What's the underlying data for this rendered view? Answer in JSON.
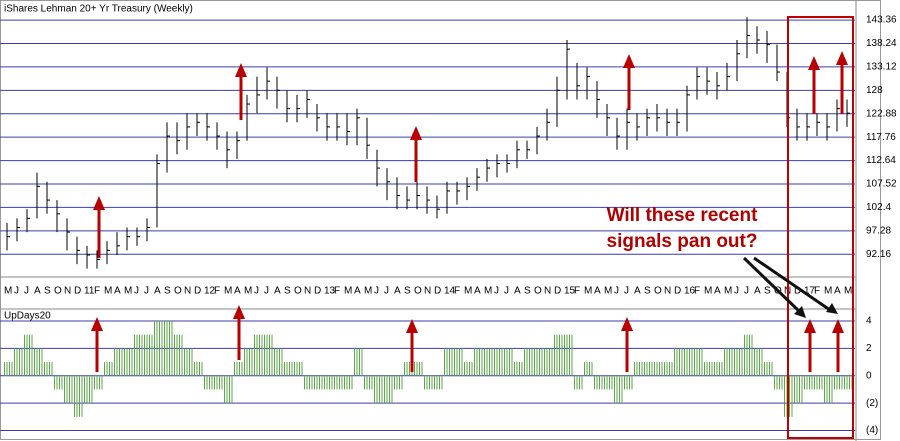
{
  "chart_data": [
    {
      "type": "ohlc",
      "title": "iShares Lehman 20+ Yr Treasury (Weekly)",
      "categories": [
        "M",
        "J",
        "J",
        "A",
        "S",
        "O",
        "N",
        "D",
        "11",
        "F",
        "M",
        "A",
        "M",
        "J",
        "J",
        "A",
        "S",
        "O",
        "N",
        "D",
        "12",
        "F",
        "M",
        "A",
        "M",
        "J",
        "J",
        "A",
        "S",
        "O",
        "N",
        "D",
        "13",
        "F",
        "M",
        "A",
        "M",
        "J",
        "J",
        "A",
        "S",
        "O",
        "N",
        "D",
        "14",
        "F",
        "M",
        "A",
        "M",
        "J",
        "J",
        "A",
        "S",
        "O",
        "N",
        "D",
        "15",
        "F",
        "M",
        "A",
        "M",
        "J",
        "J",
        "A",
        "S",
        "O",
        "N",
        "D",
        "16",
        "F",
        "M",
        "A",
        "M",
        "J",
        "J",
        "A",
        "S",
        "O",
        "N",
        "D",
        "17",
        "F",
        "M",
        "A",
        "M"
      ],
      "high": [
        99,
        100,
        102,
        110,
        108,
        104,
        100,
        96,
        94,
        93,
        95,
        97,
        98,
        98,
        100,
        114,
        121,
        121,
        123,
        123,
        123,
        121,
        119,
        119,
        127,
        131,
        133,
        131,
        128,
        127,
        128,
        125,
        123,
        123,
        123,
        124,
        122,
        115,
        111,
        109,
        107,
        108,
        107,
        105,
        108,
        108,
        109,
        111,
        113,
        114,
        114,
        117,
        117,
        120,
        124,
        131,
        139,
        134,
        133,
        130,
        125,
        122,
        124,
        123,
        124,
        125,
        124,
        124,
        129,
        133,
        133,
        132,
        134,
        139,
        144,
        142,
        141,
        138,
        132,
        124,
        123,
        123,
        123,
        126,
        126
      ],
      "low": [
        93,
        95,
        97,
        100,
        101,
        97,
        93,
        90,
        89,
        89,
        90,
        92,
        93,
        94,
        95,
        98,
        110,
        114,
        115,
        118,
        117,
        115,
        111,
        113,
        117,
        123,
        126,
        124,
        121,
        121,
        122,
        119,
        117,
        117,
        116,
        116,
        113,
        107,
        104,
        102,
        102,
        102,
        101,
        100,
        101,
        103,
        104,
        106,
        108,
        109,
        110,
        111,
        113,
        114,
        117,
        120,
        126,
        126,
        126,
        122,
        118,
        115,
        115,
        117,
        118,
        119,
        118,
        118,
        119,
        126,
        127,
        126,
        128,
        130,
        135,
        136,
        134,
        130,
        120,
        117,
        117,
        118,
        117,
        119,
        120
      ],
      "close": [
        96,
        98,
        100,
        107,
        104,
        101,
        97,
        93,
        92,
        91,
        93,
        94,
        96,
        96,
        98,
        112,
        118,
        117,
        120,
        121,
        120,
        118,
        115,
        117,
        125,
        127,
        130,
        128,
        124,
        124,
        126,
        122,
        120,
        120,
        119,
        122,
        116,
        111,
        108,
        105,
        104,
        105,
        104,
        102,
        106,
        106,
        107,
        109,
        111,
        112,
        112,
        115,
        115,
        118,
        121,
        128,
        137,
        129,
        131,
        126,
        122,
        118,
        121,
        120,
        122,
        122,
        121,
        121,
        127,
        131,
        130,
        129,
        131,
        136,
        140,
        139,
        138,
        132,
        122,
        120,
        120,
        121,
        120,
        124,
        123
      ],
      "color": "#000000",
      "ylim": [
        87.4,
        146
      ],
      "yticks": [
        92.16,
        97.28,
        102.4,
        107.52,
        112.64,
        117.76,
        122.88,
        128,
        133.12,
        138.24,
        143.36
      ],
      "grid": true,
      "annotation": [
        "Will these recent",
        "signals pan out?"
      ]
    },
    {
      "type": "bar",
      "title": "UpDays20",
      "values": [
        1,
        2,
        3,
        2,
        1,
        -1,
        -2,
        -3,
        -2,
        -1,
        1,
        2,
        2,
        3,
        3,
        4,
        4,
        3,
        2,
        1,
        -1,
        -1,
        -2,
        1,
        2,
        3,
        3,
        2,
        1,
        1,
        -1,
        -1,
        -1,
        -1,
        -1,
        2,
        -1,
        -2,
        -2,
        -1,
        1,
        1,
        -1,
        -1,
        2,
        2,
        1,
        2,
        2,
        2,
        2,
        1,
        2,
        2,
        2,
        3,
        3,
        -1,
        1,
        -1,
        -1,
        -2,
        -1,
        1,
        1,
        1,
        1,
        2,
        2,
        2,
        1,
        1,
        2,
        2,
        3,
        2,
        1,
        -1,
        -3,
        -2,
        -1,
        -1,
        -2,
        -1,
        -1
      ],
      "color": "#5aa845",
      "ylim": [
        -4.4,
        4.8
      ],
      "yticks": [
        4,
        2,
        0,
        {
          "value": -2,
          "label": "(2)"
        },
        {
          "value": -4,
          "label": "(4)"
        }
      ],
      "grid": true
    }
  ]
}
